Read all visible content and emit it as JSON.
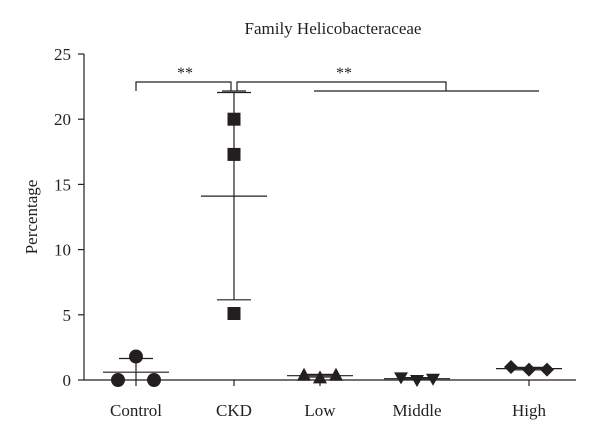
{
  "chart_data": {
    "type": "scatter",
    "title": "Family Helicobacteraceae",
    "xlabel": "",
    "ylabel": "Percentage",
    "ylim": [
      0,
      25
    ],
    "yticks": [
      0,
      5,
      10,
      15,
      20,
      25
    ],
    "grid": false,
    "legend": "none",
    "categories": [
      "Control",
      "CKD",
      "Low",
      "Middle",
      "High"
    ],
    "groups": [
      {
        "category": "Control",
        "marker": "circle",
        "points": [
          1.8,
          0.0,
          0.0
        ],
        "mean": 0.6,
        "sd": 1.05
      },
      {
        "category": "CKD",
        "marker": "square",
        "points": [
          20.0,
          17.3,
          5.1
        ],
        "mean": 14.1,
        "sd": 7.95
      },
      {
        "category": "Low",
        "marker": "triangle-up",
        "points": [
          0.4,
          0.2,
          0.4
        ],
        "mean": 0.33,
        "sd": 0.1
      },
      {
        "category": "Middle",
        "marker": "triangle-down",
        "points": [
          0.2,
          0.0,
          0.1
        ],
        "mean": 0.1,
        "sd": 0.08
      },
      {
        "category": "High",
        "marker": "diamond",
        "points": [
          1.0,
          0.8,
          0.8
        ],
        "mean": 0.87,
        "sd": 0.1
      }
    ],
    "annotations": [
      {
        "label": "**",
        "from": "Control",
        "to": "CKD"
      },
      {
        "label": "**",
        "from": "CKD",
        "to": [
          "Low",
          "Middle",
          "High"
        ]
      }
    ]
  }
}
